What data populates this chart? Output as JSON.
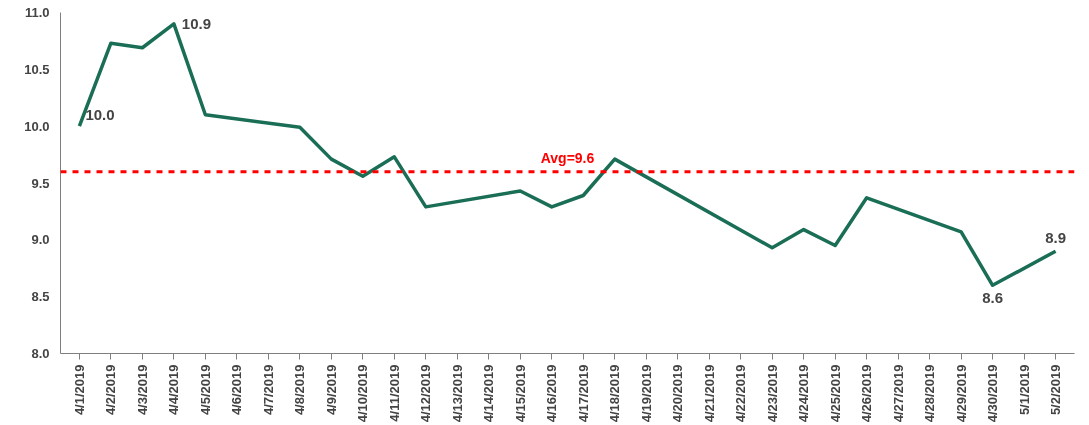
{
  "chart_data": {
    "type": "line",
    "categories": [
      "4/1/2019",
      "4/2/2019",
      "4/3/2019",
      "4/4/2019",
      "4/5/2019",
      "4/6/2019",
      "4/7/2019",
      "4/8/2019",
      "4/9/2019",
      "4/10/2019",
      "4/11/2019",
      "4/12/2019",
      "4/13/2019",
      "4/14/2019",
      "4/15/2019",
      "4/16/2019",
      "4/17/2019",
      "4/18/2019",
      "4/19/2019",
      "4/20/2019",
      "4/21/2019",
      "4/22/2019",
      "4/23/2019",
      "4/24/2019",
      "4/25/2019",
      "4/26/2019",
      "4/27/2019",
      "4/28/2019",
      "4/29/2019",
      "4/30/2019",
      "5/1/2019",
      "5/2/2019"
    ],
    "series": [
      {
        "color": "#1b6e56",
        "values": [
          10.0,
          10.73,
          10.69,
          10.9,
          10.1,
          null,
          null,
          9.99,
          9.71,
          9.56,
          9.73,
          9.29,
          null,
          null,
          9.43,
          9.29,
          9.39,
          9.71,
          null,
          null,
          null,
          null,
          8.93,
          9.09,
          8.95,
          9.37,
          null,
          null,
          9.07,
          8.6,
          null,
          8.9
        ],
        "value_labels": [
          "10.0",
          null,
          null,
          "10.9",
          null,
          null,
          null,
          null,
          null,
          null,
          null,
          null,
          null,
          null,
          null,
          null,
          null,
          null,
          null,
          null,
          null,
          null,
          null,
          null,
          null,
          null,
          null,
          null,
          null,
          "8.6",
          null,
          "8.9"
        ]
      }
    ],
    "ylim": [
      8.0,
      11.0
    ],
    "yticks": [
      {
        "value": 8.0,
        "label": "8.0"
      },
      {
        "value": 8.5,
        "label": "8.5"
      },
      {
        "value": 9.0,
        "label": "9.0"
      },
      {
        "value": 9.5,
        "label": "9.5"
      },
      {
        "value": 10.0,
        "label": "10.0"
      },
      {
        "value": 10.5,
        "label": "10.5"
      },
      {
        "value": 11.0,
        "label": "11.0"
      }
    ],
    "ref_lines": [
      {
        "axis": "y",
        "value": 9.6,
        "label": "Avg=9.6",
        "color": "#ff0000",
        "line_style": "dashed"
      }
    ],
    "grid": false,
    "marker": "none",
    "line_style": "solid"
  }
}
